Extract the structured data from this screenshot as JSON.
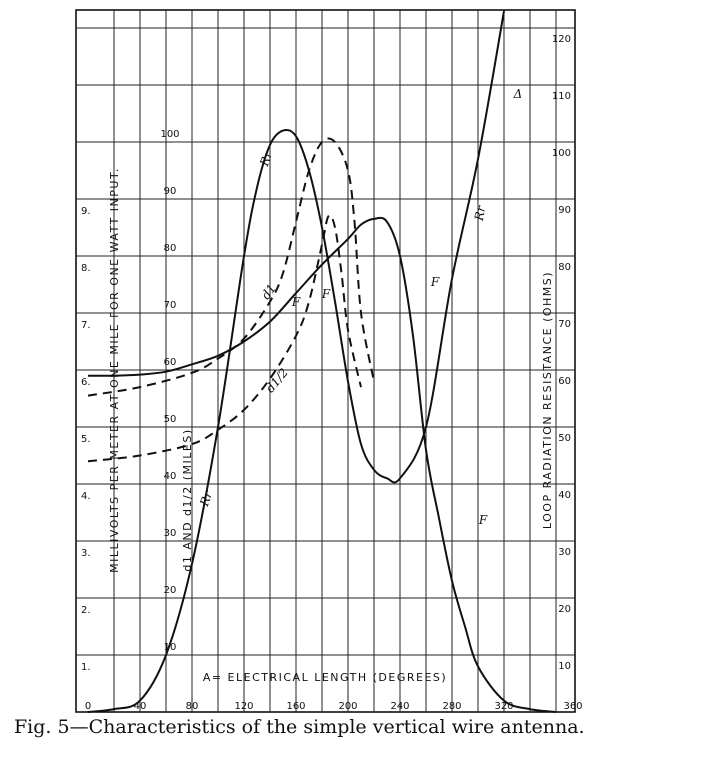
{
  "caption": {
    "fig": "Fig. 5",
    "text": "—Characteristics of the simple vertical wire antenna."
  },
  "chart_data": {
    "type": "line",
    "xlabel": "A= ELECTRICAL LENGTH (DEGREES)",
    "ylabel_left": "MILLIVOLTS PER METER AT ONE MILE FOR ONE WATT INPUT.",
    "ylabel_mid": "d1 AND d1/2 (MILES)",
    "ylabel_right": "LOOP RADIATION RESISTANCE (OHMS)",
    "xlim": [
      0,
      360
    ],
    "x_ticks": [
      "0",
      "40",
      "80",
      "120",
      "160",
      "200",
      "240",
      "280",
      "320",
      "360"
    ],
    "left_ticks": [
      "1",
      "2",
      "3",
      "4",
      "5",
      "6",
      "7",
      "8",
      "9"
    ],
    "mid_ticks": [
      "10",
      "20",
      "30",
      "40",
      "50",
      "60",
      "70",
      "80",
      "90",
      "100"
    ],
    "right_ticks": [
      "10",
      "20",
      "30",
      "40",
      "50",
      "60",
      "70",
      "80",
      "90",
      "100",
      "110",
      "120"
    ],
    "ylim_right": [
      0,
      120
    ],
    "series": [
      {
        "name": "Rr",
        "style": "solid",
        "axis": "ohms",
        "x": [
          0,
          20,
          40,
          60,
          80,
          100,
          120,
          130,
          140,
          150,
          160,
          170,
          180,
          190,
          200,
          210,
          220,
          230,
          240,
          260,
          280,
          300,
          320
        ],
        "y": [
          0,
          0.5,
          2,
          10,
          26,
          50,
          80,
          92,
          99.5,
          102,
          101,
          95,
          85,
          72,
          58,
          47,
          42.5,
          41,
          41,
          50,
          76,
          97,
          123
        ]
      },
      {
        "name": "F",
        "style": "solid",
        "axis": "ohms",
        "x": [
          0,
          20,
          40,
          60,
          80,
          100,
          120,
          140,
          160,
          180,
          200,
          210,
          220,
          230,
          240,
          250,
          260,
          270,
          280,
          290,
          300,
          320,
          340,
          360
        ],
        "y": [
          59,
          59,
          59.2,
          59.7,
          61,
          62.5,
          65,
          68.5,
          73.5,
          78.5,
          83,
          85.5,
          86.5,
          86,
          80,
          66,
          46,
          34,
          23,
          15,
          8,
          2,
          0.5,
          0
        ]
      },
      {
        "name": "d1",
        "style": "dashed",
        "axis": "miles",
        "x": [
          0,
          40,
          80,
          100,
          120,
          140,
          150,
          160,
          170,
          180,
          190,
          200,
          205,
          210,
          220
        ],
        "y": [
          55.5,
          57,
          59.5,
          62,
          65.5,
          72,
          77,
          86,
          95,
          100,
          100,
          95,
          86,
          70,
          58
        ]
      },
      {
        "name": "d1/2",
        "style": "dashed",
        "axis": "miles",
        "x": [
          0,
          40,
          80,
          100,
          120,
          140,
          160,
          170,
          180,
          185,
          190,
          195,
          200,
          210
        ],
        "y": [
          44,
          45,
          47,
          49.5,
          53,
          58.5,
          66,
          72,
          82,
          87,
          85,
          77,
          67,
          57
        ]
      }
    ],
    "grid": true
  }
}
